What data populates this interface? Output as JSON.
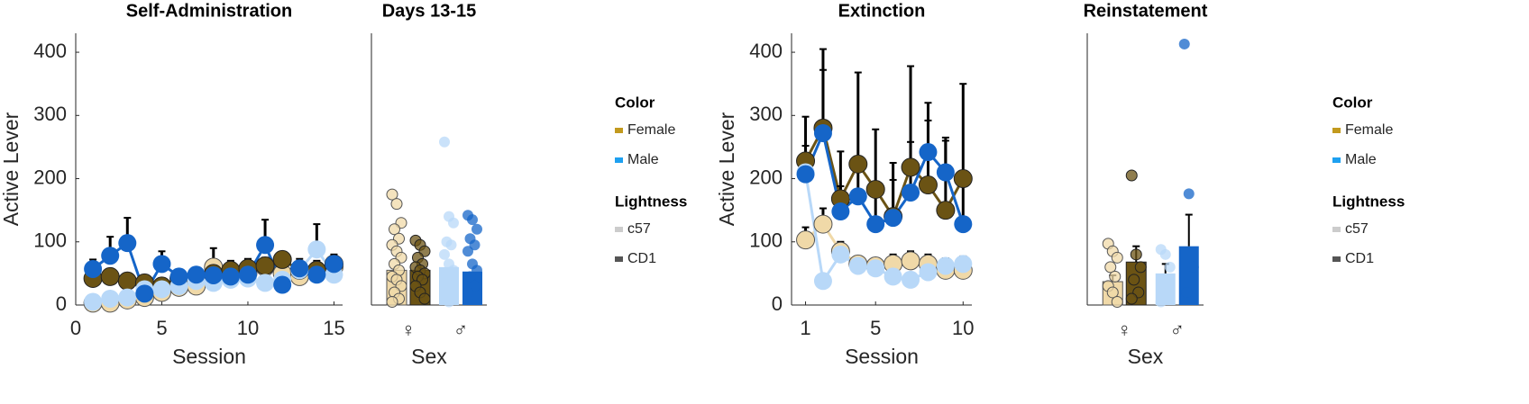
{
  "chart_data": [
    {
      "type": "line",
      "title": "Self-Administration",
      "xlabel": "Session",
      "ylabel": "Active Lever",
      "xlim": [
        0,
        15.5
      ],
      "xticks": [
        0,
        5,
        10,
        15
      ],
      "ylim": [
        0,
        430
      ],
      "yticks": [
        0,
        100,
        200,
        300,
        400
      ],
      "x": [
        1,
        2,
        3,
        4,
        5,
        6,
        7,
        8,
        9,
        10,
        11,
        12,
        13,
        14,
        15
      ],
      "series": [
        {
          "color": "#f0d9a8",
          "edgecolor": "#555555",
          "values": [
            3,
            3,
            8,
            12,
            20,
            28,
            30,
            60,
            45,
            50,
            60,
            50,
            45,
            55,
            60
          ],
          "errors": [
            3,
            3,
            5,
            5,
            8,
            6,
            6,
            12,
            10,
            10,
            15,
            10,
            10,
            15,
            12
          ]
        },
        {
          "color": "#6b5314",
          "edgecolor": "#222222",
          "values": [
            42,
            45,
            38,
            35,
            30,
            42,
            45,
            50,
            55,
            58,
            62,
            72,
            55,
            55,
            65
          ],
          "errors": [
            10,
            10,
            10,
            10,
            10,
            10,
            10,
            40,
            15,
            15,
            10,
            10,
            10,
            10,
            10
          ]
        },
        {
          "color": "#b8d8f8",
          "values": [
            5,
            10,
            12,
            25,
            25,
            30,
            38,
            35,
            40,
            42,
            35,
            40,
            55,
            88,
            48
          ],
          "errors": [
            3,
            4,
            5,
            8,
            6,
            6,
            8,
            8,
            8,
            8,
            8,
            8,
            10,
            40,
            10
          ]
        },
        {
          "color": "#1565c8",
          "values": [
            57,
            78,
            98,
            18,
            65,
            45,
            48,
            47,
            45,
            48,
            95,
            32,
            58,
            48,
            65
          ],
          "errors": [
            15,
            30,
            40,
            10,
            20,
            10,
            10,
            10,
            10,
            10,
            40,
            10,
            15,
            15,
            15
          ]
        }
      ]
    },
    {
      "type": "bar",
      "title": "Days 13-15",
      "xlabel": "Sex",
      "ylim": [
        0,
        430
      ],
      "categories": [
        "♀",
        "♂"
      ],
      "series": [
        {
          "colors": [
            "#f0d9a8",
            "#b8d8f8"
          ],
          "edgecolors": [
            "#555555",
            null
          ],
          "values": [
            55,
            60
          ],
          "points": [
            [
              175,
              160,
              130,
              120,
              105,
              95,
              85,
              75,
              65,
              55,
              45,
              40,
              30,
              20,
              10,
              5
            ],
            [
              258,
              140,
              130,
              100,
              95,
              80,
              65,
              55,
              45,
              30,
              15,
              5
            ]
          ]
        },
        {
          "colors": [
            "#6b5314",
            "#1565c8"
          ],
          "edgecolors": [
            "#222222",
            null
          ],
          "values": [
            55,
            53
          ],
          "points": [
            [
              102,
              95,
              85,
              75,
              65,
              60,
              55,
              50,
              45,
              40,
              30,
              20,
              10
            ],
            [
              142,
              135,
              120,
              105,
              95,
              85,
              65,
              55,
              45,
              30,
              20
            ]
          ]
        }
      ],
      "legends": [
        {
          "title": "Color",
          "entries": [
            {
              "label": "Female",
              "color": "#c29a1e"
            },
            {
              "label": "Male",
              "color": "#1ea0f0"
            }
          ]
        },
        {
          "title": "Lightness",
          "entries": [
            {
              "label": "c57",
              "color": "#cccccc"
            },
            {
              "label": "CD1",
              "color": "#555555"
            }
          ]
        }
      ]
    },
    {
      "type": "line",
      "title": "Extinction",
      "xlabel": "Session",
      "ylabel": "Active Lever",
      "xlim": [
        0.2,
        10.5
      ],
      "xticks": [
        1,
        5,
        10
      ],
      "ylim": [
        0,
        430
      ],
      "yticks": [
        0,
        100,
        200,
        300,
        400
      ],
      "x": [
        1,
        2,
        3,
        4,
        5,
        6,
        7,
        8,
        9,
        10
      ],
      "series": [
        {
          "color": "#f0d9a8",
          "edgecolor": "#555555",
          "values": [
            103,
            128,
            85,
            65,
            62,
            65,
            70,
            65,
            55,
            55
          ],
          "errors": [
            20,
            25,
            15,
            12,
            10,
            15,
            15,
            15,
            12,
            12
          ]
        },
        {
          "color": "#6b5314",
          "edgecolor": "#222222",
          "values": [
            228,
            280,
            168,
            223,
            183,
            140,
            218,
            190,
            150,
            200
          ],
          "errors": [
            70,
            125,
            75,
            145,
            95,
            85,
            160,
            130,
            110,
            150
          ]
        },
        {
          "color": "#b8d8f8",
          "values": [
            210,
            38,
            80,
            62,
            58,
            45,
            40,
            52,
            62,
            65
          ],
          "errors": [
            30,
            8,
            15,
            12,
            10,
            10,
            10,
            10,
            12,
            12
          ]
        },
        {
          "color": "#1565c8",
          "values": [
            207,
            272,
            148,
            172,
            128,
            138,
            178,
            242,
            210,
            128
          ],
          "errors": [
            45,
            100,
            40,
            60,
            50,
            60,
            80,
            50,
            55,
            60
          ]
        }
      ]
    },
    {
      "type": "bar",
      "title": "Reinstatement",
      "xlabel": "Sex",
      "ylim": [
        0,
        430
      ],
      "categories": [
        "♀",
        "♂"
      ],
      "series": [
        {
          "colors": [
            "#f0d9a8",
            "#b8d8f8"
          ],
          "edgecolors": [
            "#555555",
            null
          ],
          "values": [
            37,
            50
          ],
          "errors": [
            10,
            15
          ],
          "points": [
            [
              97,
              85,
              75,
              60,
              45,
              30,
              20,
              5
            ],
            [
              88,
              80,
              60,
              40,
              20,
              5
            ]
          ]
        },
        {
          "colors": [
            "#6b5314",
            "#1565c8"
          ],
          "edgecolors": [
            "#222222",
            null
          ],
          "values": [
            68,
            93
          ],
          "errors": [
            25,
            50
          ],
          "points": [
            [
              205,
              80,
              60,
              40,
              20,
              10
            ],
            [
              413,
              176,
              60,
              20
            ]
          ]
        }
      ],
      "legends": [
        {
          "title": "Color",
          "entries": [
            {
              "label": "Female",
              "color": "#c29a1e"
            },
            {
              "label": "Male",
              "color": "#1ea0f0"
            }
          ]
        },
        {
          "title": "Lightness",
          "entries": [
            {
              "label": "c57",
              "color": "#cccccc"
            },
            {
              "label": "CD1",
              "color": "#555555"
            }
          ]
        }
      ]
    }
  ]
}
